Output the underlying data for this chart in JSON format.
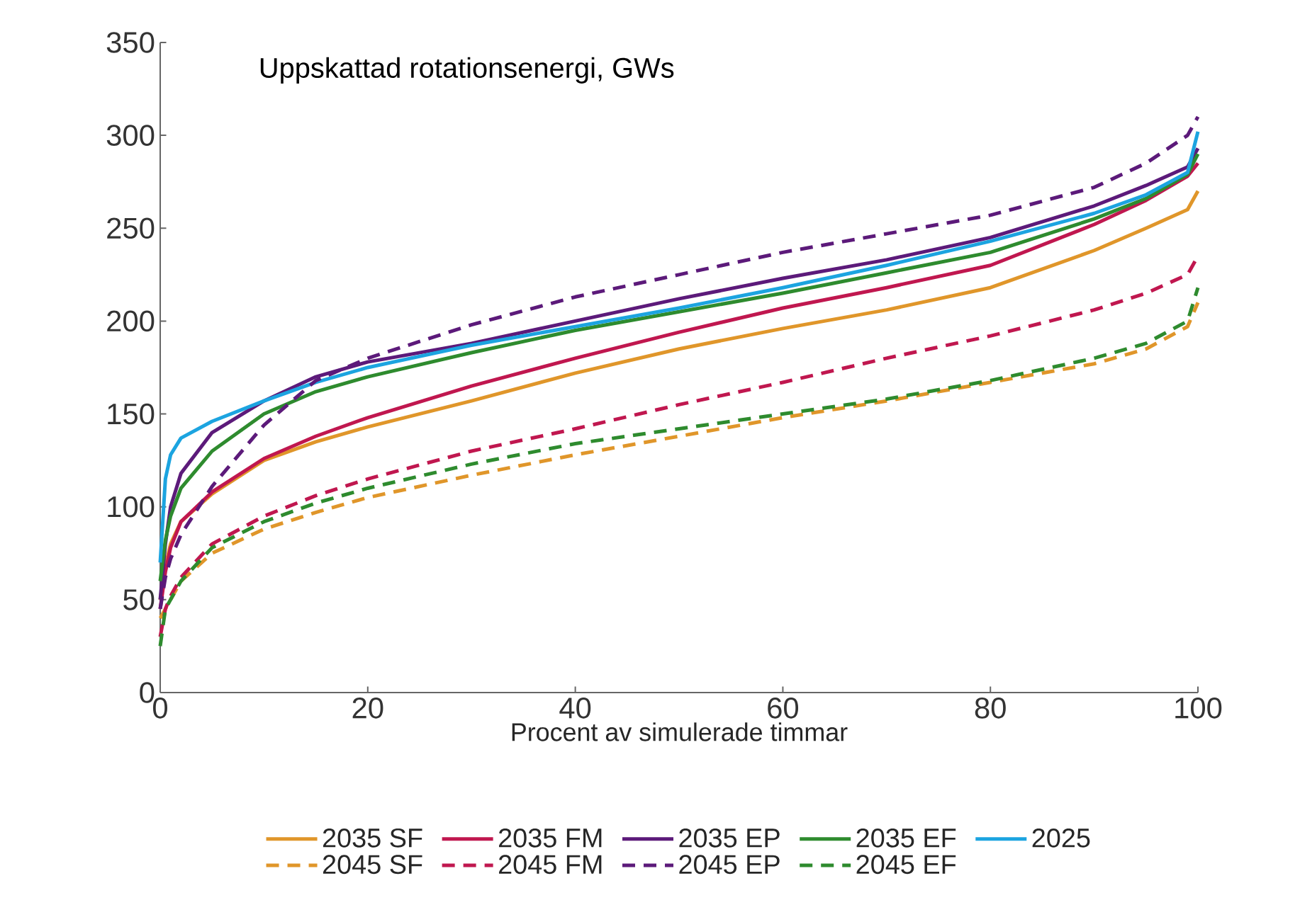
{
  "chart_data": {
    "type": "line",
    "title": "Uppskattad rotationsenergi, GWs",
    "xlabel": "Procent av simulerade timmar",
    "x": [
      0,
      0.5,
      1,
      2,
      5,
      10,
      15,
      20,
      30,
      40,
      50,
      60,
      70,
      80,
      90,
      95,
      99,
      100
    ],
    "xlim": [
      0,
      100
    ],
    "xticks": [
      0,
      20,
      40,
      60,
      80,
      100
    ],
    "ylim": [
      0,
      350
    ],
    "yticks": [
      0,
      50,
      100,
      150,
      200,
      250,
      300,
      350
    ],
    "grid": false,
    "legend": "bottom",
    "marker": "none",
    "line_style": "solid",
    "series": [
      {
        "name": "2035 SF",
        "color": "#e0962a",
        "values": [
          50,
          68,
          80,
          92,
          107,
          125,
          135,
          143,
          157,
          172,
          185,
          196,
          206,
          218,
          238,
          250,
          260,
          270
        ]
      },
      {
        "name": "2035 FM",
        "color": "#c0174f",
        "values": [
          45,
          65,
          78,
          92,
          108,
          126,
          138,
          148,
          165,
          180,
          194,
          207,
          218,
          230,
          252,
          265,
          278,
          285
        ]
      },
      {
        "name": "2035 EP",
        "color": "#5c1a7a",
        "values": [
          50,
          80,
          100,
          118,
          140,
          157,
          170,
          178,
          188,
          200,
          212,
          223,
          233,
          245,
          262,
          273,
          283,
          293
        ]
      },
      {
        "name": "2035 EF",
        "color": "#2e8b2e",
        "values": [
          60,
          82,
          95,
          110,
          130,
          150,
          162,
          170,
          183,
          195,
          205,
          215,
          226,
          237,
          255,
          266,
          279,
          290
        ]
      },
      {
        "name": "2025",
        "color": "#1ca4e0",
        "values": [
          70,
          115,
          128,
          137,
          146,
          157,
          167,
          175,
          187,
          197,
          207,
          218,
          230,
          243,
          258,
          268,
          280,
          302
        ]
      },
      {
        "name": "2045 SF",
        "color": "#e0962a",
        "line_style": "dashed",
        "values": [
          40,
          45,
          50,
          60,
          75,
          88,
          97,
          105,
          117,
          128,
          138,
          148,
          157,
          167,
          177,
          185,
          197,
          210
        ]
      },
      {
        "name": "2045 FM",
        "color": "#c0174f",
        "line_style": "dashed",
        "values": [
          30,
          45,
          52,
          62,
          80,
          95,
          106,
          115,
          130,
          142,
          155,
          167,
          180,
          192,
          206,
          215,
          225,
          235
        ]
      },
      {
        "name": "2045 EP",
        "color": "#5c1a7a",
        "line_style": "dashed",
        "values": [
          45,
          62,
          72,
          85,
          111,
          144,
          168,
          180,
          198,
          213,
          225,
          237,
          247,
          257,
          272,
          285,
          300,
          310
        ]
      },
      {
        "name": "2045 EF",
        "color": "#2e8b2e",
        "line_style": "dashed",
        "values": [
          25,
          45,
          50,
          60,
          78,
          92,
          102,
          110,
          123,
          134,
          142,
          150,
          158,
          168,
          180,
          188,
          200,
          218
        ]
      }
    ]
  }
}
